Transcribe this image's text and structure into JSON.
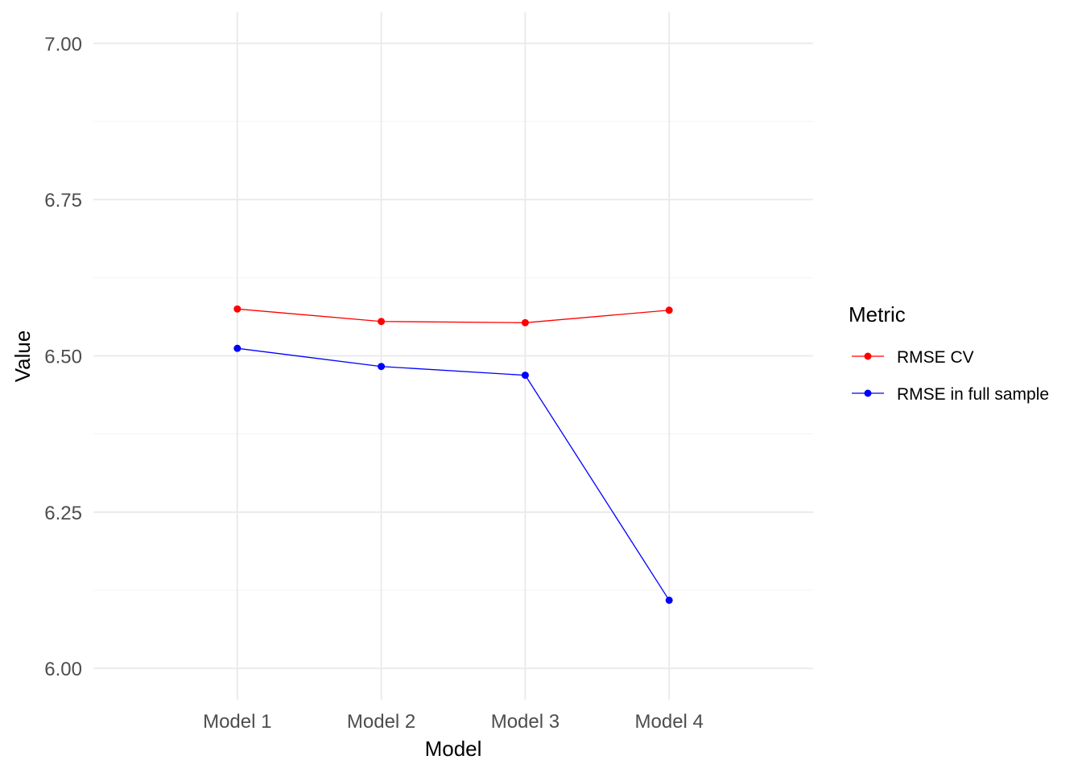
{
  "chart_data": {
    "type": "line",
    "xlabel": "Model",
    "ylabel": "Value",
    "categories": [
      "Model 1",
      "Model 2",
      "Model 3",
      "Model 4"
    ],
    "ylim": [
      5.95,
      7.05
    ],
    "yticks": [
      6.0,
      6.25,
      6.5,
      6.75,
      7.0
    ],
    "ytick_labels": [
      "6.00",
      "6.25",
      "6.50",
      "6.75",
      "7.00"
    ],
    "grid": true,
    "legend": {
      "title": "Metric",
      "position": "right"
    },
    "series": [
      {
        "name": "RMSE CV",
        "color": "#ff0000",
        "values": [
          6.575,
          6.555,
          6.553,
          6.573
        ]
      },
      {
        "name": "RMSE in full sample",
        "color": "#0000ff",
        "values": [
          6.512,
          6.483,
          6.469,
          6.109
        ]
      }
    ]
  }
}
